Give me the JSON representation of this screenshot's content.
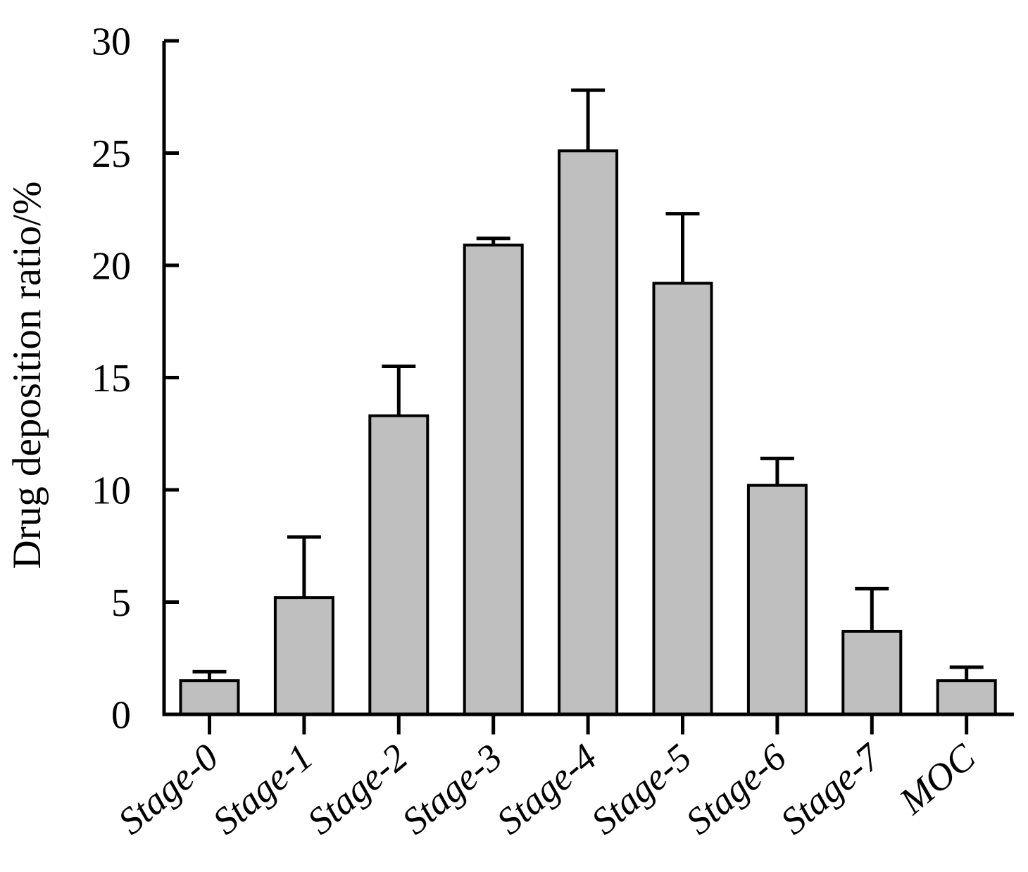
{
  "chart_data": {
    "type": "bar",
    "title": "",
    "ylabel": "Drug deposition ratio/%",
    "xlabel": "",
    "categories": [
      "Stage-0",
      "Stage-1",
      "Stage-2",
      "Stage-3",
      "Stage-4",
      "Stage-5",
      "Stage-6",
      "Stage-7",
      "MOC"
    ],
    "values": [
      1.5,
      5.2,
      13.3,
      20.9,
      25.1,
      19.2,
      10.2,
      3.7,
      1.5
    ],
    "errors_upper": [
      0.4,
      2.7,
      2.2,
      0.3,
      2.7,
      3.1,
      1.2,
      1.9,
      0.6
    ],
    "yticks": [
      0,
      5,
      10,
      15,
      20,
      25,
      30
    ],
    "ylim": [
      0,
      30
    ],
    "grid": false,
    "legend_position": "none",
    "colors": {
      "bar_fill": "#bfbfbf",
      "line": "#000000",
      "background": "#ffffff"
    }
  }
}
